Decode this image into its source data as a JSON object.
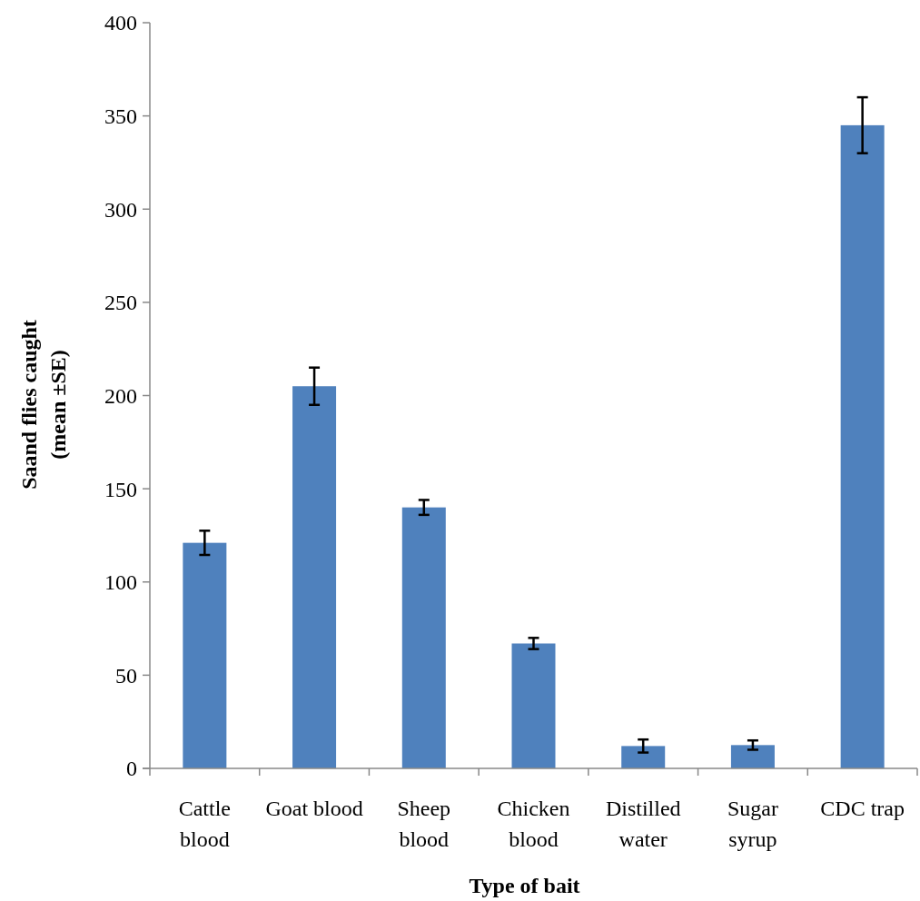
{
  "chart_data": {
    "type": "bar",
    "xlabel": "Type of bait",
    "ylabel": "Saand flies caught\n(mean ±SE)",
    "categories": [
      "Cattle blood",
      "Goat blood",
      "Sheep blood",
      "Chicken blood",
      "Distilled water",
      "Sugar syrup",
      "CDC trap"
    ],
    "values": [
      121,
      205,
      140,
      67,
      12,
      12.5,
      345
    ],
    "errors": [
      6.5,
      10,
      4,
      3,
      3.5,
      2.5,
      15
    ],
    "color": "#4f81bd",
    "ylim": [
      0,
      400
    ],
    "yticks": [
      0,
      50,
      100,
      150,
      200,
      250,
      300,
      350,
      400
    ],
    "grid": false
  }
}
